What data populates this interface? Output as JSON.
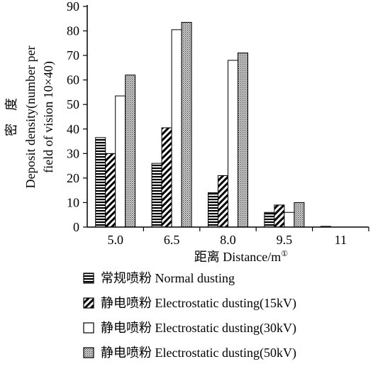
{
  "chart_data": {
    "type": "bar",
    "categories": [
      "5.0",
      "6.5",
      "8.0",
      "9.5",
      "11"
    ],
    "series": [
      {
        "name": "常规喷粉 Normal dusting",
        "values": [
          36.5,
          26,
          14,
          6,
          0.3
        ]
      },
      {
        "name": "静电喷粉 Electrostatic dusting(15kV)",
        "values": [
          30,
          40.5,
          21,
          9,
          0
        ]
      },
      {
        "name": "静电喷粉 Electrostatic dusting(30kV)",
        "values": [
          53.5,
          80.5,
          68,
          6,
          0
        ]
      },
      {
        "name": "静电喷粉 Electrostatic dusting(50kV)",
        "values": [
          62,
          83.5,
          71,
          10,
          0
        ]
      }
    ],
    "yticks": [
      "0",
      "10",
      "20",
      "30",
      "40",
      "50",
      "60",
      "70",
      "80",
      "90"
    ],
    "ylim": [
      0,
      90
    ],
    "xlabel": "距离 Distance/m",
    "xlabel_superscript": "①",
    "ylabel_cn": "密　度",
    "ylabel_line1": "Deposit density(number per",
    "ylabel_line2": "field of vision 10×40)",
    "legend_position": "bottom",
    "grid": false,
    "colors": {
      "axis": "#000000",
      "fill": "#ffffff"
    }
  }
}
